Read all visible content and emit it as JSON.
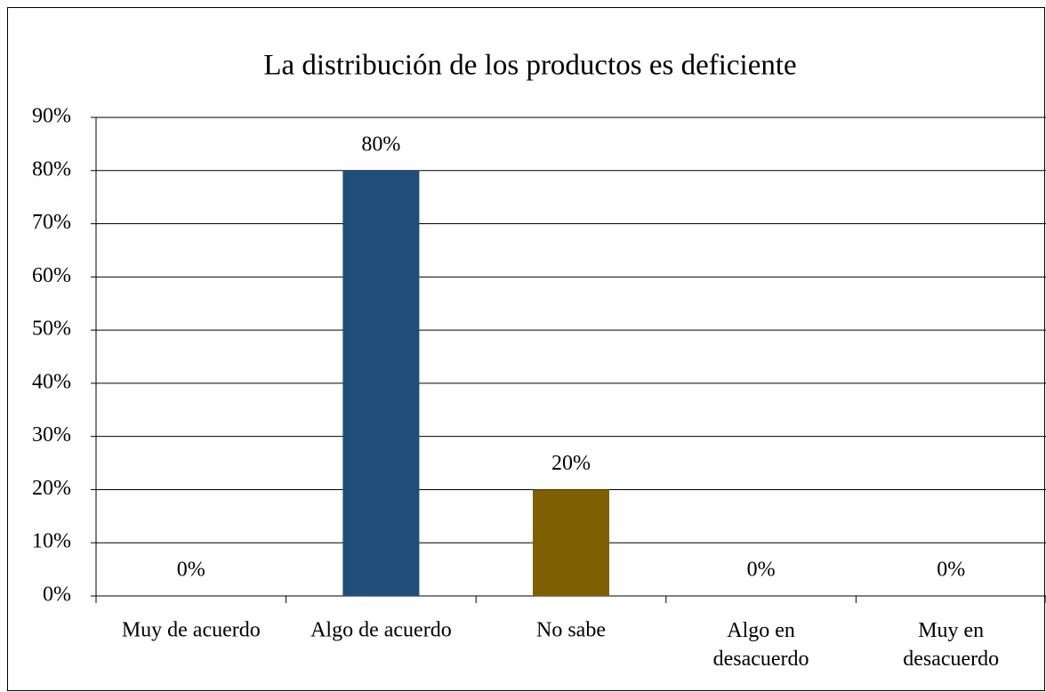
{
  "chart_data": {
    "type": "bar",
    "title": "La distribución de los productos es deficiente",
    "categories": [
      "Muy de acuerdo",
      "Algo de acuerdo",
      "No sabe",
      "Algo en\ndesacuerdo",
      "Muy en\ndesacuerdo"
    ],
    "values": [
      0,
      80,
      20,
      0,
      0
    ],
    "value_labels": [
      "0%",
      "80%",
      "20%",
      "0%",
      "0%"
    ],
    "colors": [
      "#1f4e79",
      "#1f4e79",
      "#7f6000",
      "#1f4e79",
      "#1f4e79"
    ],
    "ylim": [
      0,
      90
    ],
    "yticks": [
      {
        "value": 0,
        "label": "0%"
      },
      {
        "value": 10,
        "label": "10%"
      },
      {
        "value": 20,
        "label": "20%"
      },
      {
        "value": 30,
        "label": "30%"
      },
      {
        "value": 40,
        "label": "40%"
      },
      {
        "value": 50,
        "label": "50%"
      },
      {
        "value": 60,
        "label": "60%"
      },
      {
        "value": 70,
        "label": "70%"
      },
      {
        "value": 80,
        "label": "80%"
      },
      {
        "value": 90,
        "label": "90%"
      }
    ],
    "grid": true
  }
}
